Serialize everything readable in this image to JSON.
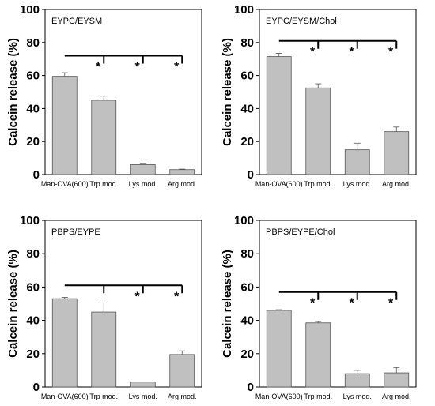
{
  "colors": {
    "bar_fill": "#c0c0c0",
    "bar_stroke": "#555555",
    "axis": "#000000"
  },
  "chart_data": [
    {
      "type": "bar",
      "title": "EYPC/EYSM",
      "ylabel": "Calcein release (%)",
      "xlabel": "",
      "categories": [
        "Man-OVA(600)",
        "Trp mod.",
        "Lys mod.",
        "Arg mod."
      ],
      "values": [
        59.5,
        45,
        6,
        3
      ],
      "errors": [
        2.2,
        2.5,
        0.8,
        0.3
      ],
      "ylim": [
        0,
        100
      ],
      "yticks": [
        "0",
        "20",
        "40",
        "60",
        "80",
        "100"
      ],
      "significance": {
        "from_category": "Man-OVA(600)",
        "marks": [
          "*",
          "*",
          "*"
        ],
        "level": 72
      },
      "grid": false,
      "legend": "none"
    },
    {
      "type": "bar",
      "title": "EYPC/EYSM/Chol",
      "ylabel": "Calcein release (%)",
      "xlabel": "",
      "categories": [
        "Man-OVA(600)",
        "Trp mod.",
        "Lys mod.",
        "Arg mod."
      ],
      "values": [
        71.5,
        52.5,
        15,
        26
      ],
      "errors": [
        2,
        2.5,
        4,
        2.8
      ],
      "ylim": [
        0,
        100
      ],
      "yticks": [
        "0",
        "20",
        "40",
        "60",
        "80",
        "100"
      ],
      "significance": {
        "from_category": "Man-OVA(600)",
        "marks": [
          "*",
          "*",
          "*"
        ],
        "level": 81
      },
      "grid": false,
      "legend": "none"
    },
    {
      "type": "bar",
      "title": "PBPS/EYPE",
      "ylabel": "Calcein release (%)",
      "xlabel": "",
      "categories": [
        "Man-OVA(600)",
        "Trp mod.",
        "Lys mod.",
        "Arg mod."
      ],
      "values": [
        53,
        45,
        3,
        19.5
      ],
      "errors": [
        0.8,
        5.5,
        0,
        2.2
      ],
      "ylim": [
        0,
        100
      ],
      "yticks": [
        "0",
        "20",
        "40",
        "60",
        "80",
        "100"
      ],
      "significance": {
        "from_category": "Man-OVA(600)",
        "marks": [
          "",
          "*",
          "*"
        ],
        "level": 61
      },
      "grid": false,
      "legend": "none"
    },
    {
      "type": "bar",
      "title": "PBPS/EYPE/Chol",
      "ylabel": "Calcein release (%)",
      "xlabel": "",
      "categories": [
        "Man-OVA(600)",
        "Trp mod.",
        "Lys mod.",
        "Arg mod."
      ],
      "values": [
        46,
        38.5,
        8,
        8.5
      ],
      "errors": [
        0.4,
        0.8,
        2,
        3.2
      ],
      "ylim": [
        0,
        100
      ],
      "yticks": [
        "0",
        "20",
        "40",
        "60",
        "80",
        "100"
      ],
      "significance": {
        "from_category": "Man-OVA(600)",
        "marks": [
          "*",
          "*",
          "*"
        ],
        "level": 57
      },
      "grid": false,
      "legend": "none"
    }
  ]
}
